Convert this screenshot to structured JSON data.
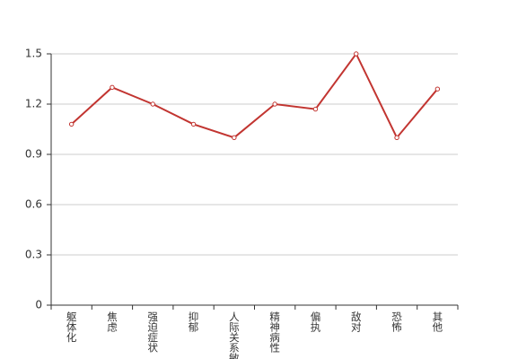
{
  "chart_data": {
    "type": "line",
    "categories": [
      "躯体化",
      "焦虑",
      "强迫症状",
      "抑郁",
      "人际关系敏感",
      "精神病性",
      "偏执",
      "敌对",
      "恐怖",
      "其他"
    ],
    "series": [
      {
        "color": "#c23531",
        "values": [
          1.08,
          1.3,
          1.2,
          1.08,
          1.0,
          1.2,
          1.17,
          1.5,
          1.0,
          1.29
        ]
      }
    ],
    "ylim": [
      0,
      1.5
    ],
    "yticks": [
      0,
      0.3,
      0.6,
      0.9,
      1.2,
      1.5
    ],
    "grid": true
  }
}
